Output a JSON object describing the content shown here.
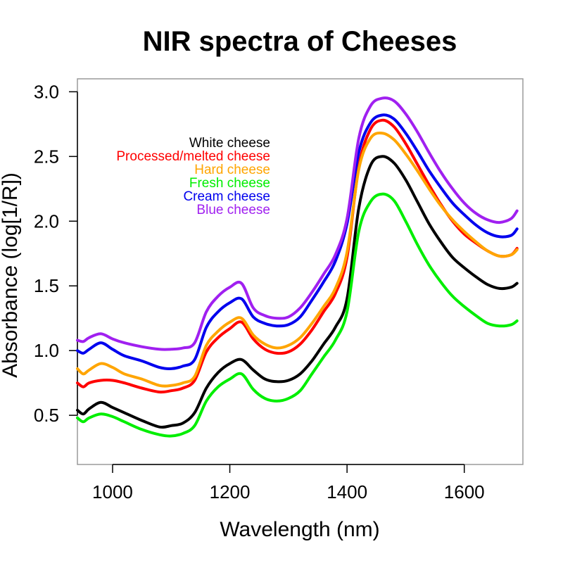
{
  "chart_data": {
    "type": "line",
    "title": "NIR spectra of Cheeses",
    "xlabel": "Wavelength (nm)",
    "ylabel": "Absorbance (log[1/R])",
    "xlim": [
      940,
      1700
    ],
    "ylim": [
      0.12,
      3.1
    ],
    "x_ticks": [
      "1000",
      "1200",
      "1400",
      "1600"
    ],
    "y_ticks": [
      "0.5",
      "1.0",
      "1.5",
      "2.0",
      "2.5",
      "3.0"
    ],
    "grid": false,
    "legend_placement": "top-left",
    "x": [
      940,
      950,
      960,
      980,
      1000,
      1020,
      1050,
      1080,
      1100,
      1120,
      1140,
      1160,
      1180,
      1200,
      1220,
      1240,
      1260,
      1280,
      1300,
      1320,
      1340,
      1360,
      1380,
      1400,
      1420,
      1440,
      1460,
      1480,
      1500,
      1520,
      1540,
      1560,
      1580,
      1600,
      1620,
      1640,
      1660,
      1680,
      1690
    ],
    "series": [
      {
        "name": "White cheese",
        "color": "#000000",
        "values": [
          0.54,
          0.51,
          0.55,
          0.6,
          0.56,
          0.52,
          0.46,
          0.41,
          0.42,
          0.44,
          0.52,
          0.71,
          0.83,
          0.9,
          0.93,
          0.85,
          0.78,
          0.76,
          0.77,
          0.82,
          0.92,
          1.05,
          1.18,
          1.4,
          2.1,
          2.43,
          2.5,
          2.45,
          2.32,
          2.15,
          1.98,
          1.84,
          1.72,
          1.64,
          1.57,
          1.51,
          1.48,
          1.49,
          1.52
        ]
      },
      {
        "name": "Processed/melted cheese",
        "color": "#ff0000",
        "values": [
          0.75,
          0.72,
          0.75,
          0.77,
          0.77,
          0.75,
          0.71,
          0.68,
          0.69,
          0.71,
          0.77,
          0.99,
          1.1,
          1.17,
          1.22,
          1.09,
          1.01,
          0.98,
          0.99,
          1.05,
          1.16,
          1.3,
          1.44,
          1.72,
          2.42,
          2.71,
          2.78,
          2.73,
          2.6,
          2.44,
          2.28,
          2.13,
          2.0,
          1.9,
          1.83,
          1.77,
          1.73,
          1.74,
          1.79
        ]
      },
      {
        "name": "Hard cheese",
        "color": "#ffa500",
        "values": [
          0.86,
          0.82,
          0.85,
          0.9,
          0.87,
          0.82,
          0.78,
          0.73,
          0.73,
          0.75,
          0.8,
          1.04,
          1.15,
          1.22,
          1.25,
          1.12,
          1.05,
          1.02,
          1.04,
          1.1,
          1.21,
          1.34,
          1.48,
          1.76,
          2.4,
          2.64,
          2.68,
          2.63,
          2.52,
          2.39,
          2.25,
          2.12,
          2.01,
          1.92,
          1.84,
          1.77,
          1.73,
          1.74,
          1.78
        ]
      },
      {
        "name": "Fresh cheese",
        "color": "#00ee00",
        "values": [
          0.48,
          0.45,
          0.48,
          0.51,
          0.49,
          0.45,
          0.39,
          0.35,
          0.34,
          0.36,
          0.42,
          0.61,
          0.72,
          0.78,
          0.82,
          0.7,
          0.63,
          0.61,
          0.63,
          0.69,
          0.82,
          0.95,
          1.08,
          1.3,
          1.92,
          2.15,
          2.21,
          2.16,
          2.0,
          1.82,
          1.66,
          1.53,
          1.42,
          1.34,
          1.27,
          1.21,
          1.19,
          1.2,
          1.23
        ]
      },
      {
        "name": "Cream cheese",
        "color": "#0000ee",
        "values": [
          1.0,
          0.98,
          1.01,
          1.06,
          1.01,
          0.96,
          0.92,
          0.87,
          0.86,
          0.88,
          0.93,
          1.18,
          1.3,
          1.37,
          1.4,
          1.26,
          1.21,
          1.19,
          1.2,
          1.26,
          1.39,
          1.53,
          1.69,
          1.98,
          2.53,
          2.76,
          2.82,
          2.79,
          2.68,
          2.54,
          2.39,
          2.26,
          2.14,
          2.05,
          1.97,
          1.91,
          1.88,
          1.89,
          1.94
        ]
      },
      {
        "name": "Blue cheese",
        "color": "#a020f0",
        "values": [
          1.08,
          1.07,
          1.1,
          1.13,
          1.09,
          1.06,
          1.03,
          1.01,
          1.01,
          1.02,
          1.06,
          1.3,
          1.42,
          1.49,
          1.52,
          1.33,
          1.27,
          1.25,
          1.26,
          1.33,
          1.45,
          1.59,
          1.74,
          2.02,
          2.64,
          2.89,
          2.95,
          2.93,
          2.83,
          2.69,
          2.53,
          2.38,
          2.25,
          2.14,
          2.06,
          2.01,
          1.99,
          2.02,
          2.08
        ]
      }
    ]
  }
}
